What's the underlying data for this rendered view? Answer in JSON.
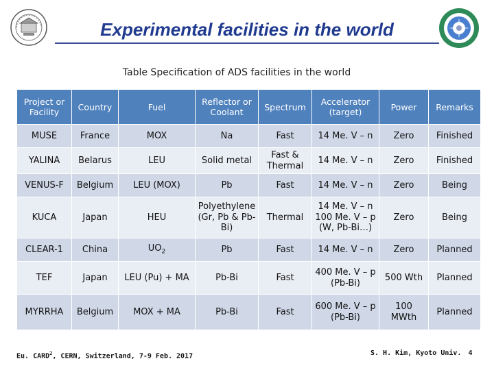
{
  "slide": {
    "title": "Experimental facilities in the world",
    "caption": "Table  Specification of ADS facilities in the world"
  },
  "colors": {
    "title": "#1f3a8f",
    "header_bg": "#4f81bd",
    "row_odd": "#d0d8e8",
    "row_even": "#e9edf4"
  },
  "icons": {
    "left_logo": "university-emblem-icon",
    "right_logo": "kyoto-university-reactor-seal-icon"
  },
  "table": {
    "headers": [
      "Project or Facility",
      "Country",
      "Fuel",
      "Reflector or Coolant",
      "Spectrum",
      "Accelerator (target)",
      "Power",
      "Remarks"
    ],
    "rows": [
      [
        "MUSE",
        "France",
        "MOX",
        "Na",
        "Fast",
        "14 Me. V – n",
        "Zero",
        "Finished"
      ],
      [
        "YALINA",
        "Belarus",
        "LEU",
        "Solid metal",
        "Fast & Thermal",
        "14 Me. V – n",
        "Zero",
        "Finished"
      ],
      [
        "VENUS-F",
        "Belgium",
        "LEU (MOX)",
        "Pb",
        "Fast",
        "14 Me. V – n",
        "Zero",
        "Being"
      ],
      [
        "KUCA",
        "Japan",
        "HEU",
        "Polyethylene (Gr, Pb & Pb-Bi)",
        "Thermal",
        "14 Me. V – n 100 Me. V – p (W, Pb-Bi…)",
        "Zero",
        "Being"
      ],
      [
        "CLEAR-1",
        "China",
        "UO",
        "Pb",
        "Fast",
        "14 Me. V – n",
        "Zero",
        "Planned"
      ],
      [
        "TEF",
        "Japan",
        "LEU (Pu) + MA",
        "Pb-Bi",
        "Fast",
        "400 Me. V – p (Pb-Bi)",
        "500 Wth",
        "Planned"
      ],
      [
        "MYRRHA",
        "Belgium",
        "MOX + MA",
        "Pb-Bi",
        "Fast",
        "600 Me. V – p (Pb-Bi)",
        "100 MWth",
        "Planned"
      ]
    ],
    "uo2_subscript": "2"
  },
  "footer": {
    "event_prefix": "Eu. CARD",
    "event_superscript": "2",
    "event_suffix": ", CERN, Switzerland, 7-9 Feb. 2017",
    "author": "S. H. Kim, Kyoto Univ.",
    "page_number": "4"
  }
}
